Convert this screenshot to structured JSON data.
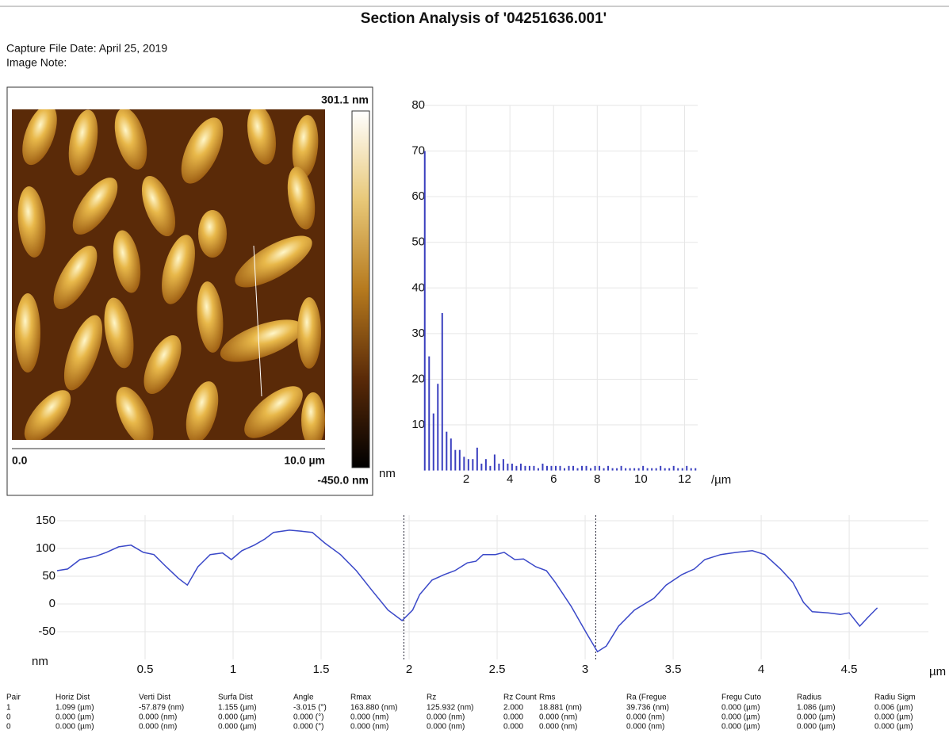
{
  "header": {
    "title": "Section Analysis of '04251636.001'",
    "capture_date": "Capture File Date: April 25, 2019",
    "image_note": "Image Note:"
  },
  "image_panel": {
    "z_max": "301.1 nm",
    "z_min": "-450.0 nm",
    "x_start": "0.0",
    "x_end": "10.0 µm"
  },
  "chart_data": [
    {
      "type": "bar",
      "color": "#3a3fbf",
      "ylabel": "nm",
      "xlabel": "/µm",
      "grid": true,
      "x": [
        0.1,
        0.3,
        0.5,
        0.7,
        0.9,
        1.1,
        1.3,
        1.5,
        1.7,
        1.9,
        2.1,
        2.3,
        2.5,
        2.7,
        2.9,
        3.1,
        3.3,
        3.5,
        3.7,
        3.9,
        4.1,
        4.3,
        4.5,
        4.7,
        4.9,
        5.1,
        5.3,
        5.5,
        5.7,
        5.9,
        6.1,
        6.3,
        6.5,
        6.7,
        6.9,
        7.1,
        7.3,
        7.5,
        7.7,
        7.9,
        8.1,
        8.3,
        8.5,
        8.7,
        8.9,
        9.1,
        9.3,
        9.5,
        9.7,
        9.9,
        10.1,
        10.3,
        10.5,
        10.7,
        10.9,
        11.1,
        11.3,
        11.5,
        11.7,
        11.9,
        12.1,
        12.3,
        12.5
      ],
      "values": [
        70,
        25,
        12.5,
        19,
        34.5,
        8.5,
        7,
        4.5,
        4.5,
        3,
        2.5,
        2.5,
        5,
        1.5,
        2.5,
        1,
        3.5,
        1.5,
        2.5,
        1.5,
        1.5,
        1,
        1.5,
        1,
        1,
        1,
        0.5,
        1.5,
        1,
        1,
        1,
        1,
        0.5,
        1,
        1,
        0.5,
        1,
        1,
        0.5,
        1,
        1,
        0.5,
        1,
        0.5,
        0.5,
        1,
        0.5,
        0.5,
        0.5,
        0.5,
        1,
        0.5,
        0.5,
        0.5,
        1,
        0.5,
        0.5,
        1,
        0.5,
        0.5,
        1,
        0.5,
        0.5
      ],
      "xlim": [
        0,
        12.6
      ],
      "xticks": [
        2,
        4,
        6,
        8,
        10,
        12
      ],
      "ylim": [
        0,
        80
      ],
      "yticks": [
        10,
        20,
        30,
        40,
        50,
        60,
        70,
        80
      ]
    },
    {
      "type": "line",
      "color": "#3a48c8",
      "ylabel": "nm",
      "xlabel": "µm",
      "grid": true,
      "x": [
        0,
        0.06,
        0.13,
        0.22,
        0.28,
        0.35,
        0.42,
        0.49,
        0.55,
        0.62,
        0.69,
        0.74,
        0.8,
        0.87,
        0.94,
        0.99,
        1.05,
        1.12,
        1.18,
        1.23,
        1.32,
        1.39,
        1.45,
        1.52,
        1.61,
        1.7,
        1.79,
        1.88,
        1.96,
        2.02,
        2.06,
        2.13,
        2.2,
        2.26,
        2.33,
        2.38,
        2.42,
        2.49,
        2.54,
        2.6,
        2.65,
        2.72,
        2.78,
        2.83,
        2.92,
        3.01,
        3.07,
        3.12,
        3.19,
        3.28,
        3.39,
        3.46,
        3.55,
        3.62,
        3.68,
        3.77,
        3.86,
        3.95,
        4.02,
        4.11,
        4.18,
        4.24,
        4.29,
        4.38,
        4.45,
        4.5,
        4.56,
        4.61,
        4.66
      ],
      "values": [
        60,
        63,
        80,
        86,
        93,
        103,
        106,
        93,
        89,
        67,
        46,
        34,
        67,
        89,
        92,
        80,
        96,
        106,
        117,
        129,
        133,
        131,
        129,
        110,
        89,
        60,
        24,
        -11,
        -30,
        -11,
        17,
        43,
        53,
        60,
        74,
        77,
        89,
        89,
        93,
        80,
        81,
        67,
        60,
        39,
        -4,
        -54,
        -86,
        -76,
        -40,
        -11,
        10,
        34,
        53,
        63,
        80,
        89,
        93,
        96,
        89,
        63,
        39,
        3,
        -14,
        -16,
        -19,
        -16,
        -40,
        -23,
        -7
      ],
      "cursors": [
        1.97,
        3.06
      ],
      "xlim": [
        0,
        4.95
      ],
      "xticks": [
        0.5,
        1,
        1.5,
        2,
        2.5,
        3,
        3.5,
        4,
        4.5
      ],
      "ylim": [
        -100,
        160
      ],
      "yticks": [
        -50,
        0,
        50,
        100,
        150
      ]
    }
  ],
  "table": {
    "headers": [
      "Pair",
      "Horiz Dist",
      "Verti Dist",
      "Surfa Dist",
      "Angle",
      "Rmax",
      "Rz",
      "Rz Count",
      "Rms",
      "Ra (Fregue",
      "Fregu Cuto",
      "Radius",
      "Radiu Sigm"
    ],
    "rows": [
      [
        "1",
        "1.099 (µm)",
        "-57.879 (nm)",
        "1.155 (µm)",
        "-3.015 (°)",
        "163.880 (nm)",
        "125.932 (nm)",
        "2.000",
        "18.881 (nm)",
        "39.736 (nm)",
        "0.000 (µm)",
        "1.086 (µm)",
        "0.006 (µm)"
      ],
      [
        "0",
        "0.000 (µm)",
        "0.000 (nm)",
        "0.000 (µm)",
        "0.000 (°)",
        "0.000 (nm)",
        "0.000 (nm)",
        "0.000",
        "0.000 (nm)",
        "0.000 (nm)",
        "0.000 (µm)",
        "0.000 (µm)",
        "0.000 (µm)"
      ],
      [
        "0",
        "0.000 (µm)",
        "0.000 (nm)",
        "0.000 (µm)",
        "0.000 (°)",
        "0.000 (nm)",
        "0.000 (nm)",
        "0.000",
        "0.000 (nm)",
        "0.000 (nm)",
        "0.000 (µm)",
        "0.000 (µm)",
        "0.000 (µm)"
      ]
    ]
  }
}
